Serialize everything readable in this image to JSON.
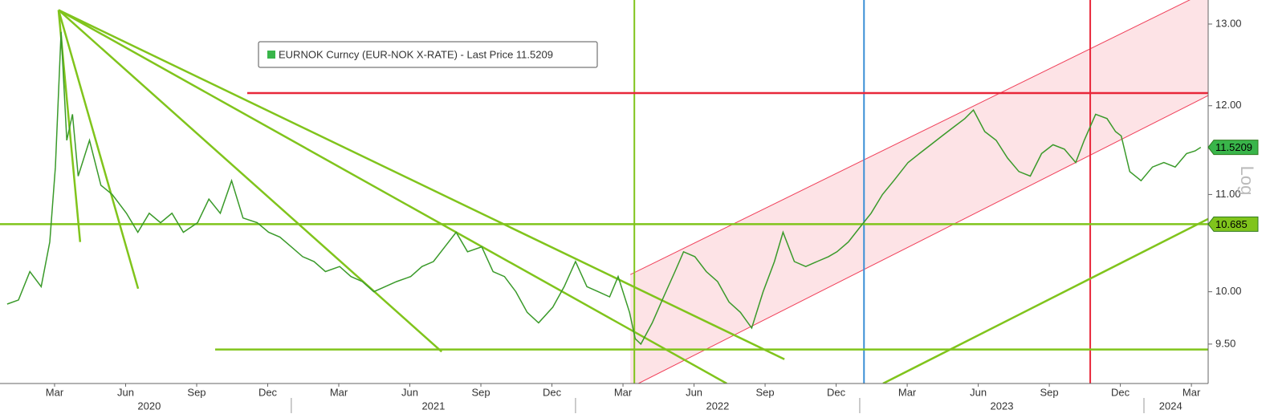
{
  "chart_data": {
    "type": "line",
    "log_scale": true,
    "scale_label": "Log",
    "xlim": [
      2019.975,
      2024.226
    ],
    "ylim": [
      9.14,
      13.31
    ],
    "yticks": [
      {
        "value": 9.5,
        "label": "9.50"
      },
      {
        "value": 10,
        "label": "10.00"
      },
      {
        "value": 11,
        "label": "11.00"
      },
      {
        "value": 12,
        "label": "12.00"
      },
      {
        "value": 13,
        "label": "13.00"
      }
    ],
    "xticks": [
      {
        "value": 2020.167,
        "label": "Mar"
      },
      {
        "value": 2020.417,
        "label": "Jun"
      },
      {
        "value": 2020.667,
        "label": "Sep"
      },
      {
        "value": 2020.917,
        "label": "Dec"
      },
      {
        "value": 2021.167,
        "label": "Mar"
      },
      {
        "value": 2021.417,
        "label": "Jun"
      },
      {
        "value": 2021.667,
        "label": "Sep"
      },
      {
        "value": 2021.917,
        "label": "Dec"
      },
      {
        "value": 2022.167,
        "label": "Mar"
      },
      {
        "value": 2022.417,
        "label": "Jun"
      },
      {
        "value": 2022.667,
        "label": "Sep"
      },
      {
        "value": 2022.917,
        "label": "Dec"
      },
      {
        "value": 2023.167,
        "label": "Mar"
      },
      {
        "value": 2023.417,
        "label": "Jun"
      },
      {
        "value": 2023.667,
        "label": "Sep"
      },
      {
        "value": 2023.917,
        "label": "Dec"
      },
      {
        "value": 2024.167,
        "label": "Mar"
      }
    ],
    "year_labels": [
      {
        "value": 2020.5,
        "label": "2020"
      },
      {
        "value": 2021.5,
        "label": "2021"
      },
      {
        "value": 2022.5,
        "label": "2022"
      },
      {
        "value": 2023.5,
        "label": "2023"
      },
      {
        "value": 2024.094,
        "label": "2024"
      }
    ],
    "year_separators": [
      2021,
      2022,
      2023,
      2024
    ],
    "x": [
      2020.0,
      2020.04,
      2020.08,
      2020.12,
      2020.15,
      2020.17,
      2020.19,
      2020.21,
      2020.23,
      2020.25,
      2020.29,
      2020.33,
      2020.37,
      2020.42,
      2020.46,
      2020.5,
      2020.54,
      2020.58,
      2020.62,
      2020.67,
      2020.71,
      2020.75,
      2020.79,
      2020.83,
      2020.88,
      2020.92,
      2020.96,
      2021.0,
      2021.04,
      2021.08,
      2021.12,
      2021.17,
      2021.21,
      2021.25,
      2021.29,
      2021.33,
      2021.37,
      2021.42,
      2021.46,
      2021.5,
      2021.54,
      2021.58,
      2021.62,
      2021.67,
      2021.71,
      2021.75,
      2021.79,
      2021.83,
      2021.87,
      2021.92,
      2021.96,
      2022.0,
      2022.04,
      2022.08,
      2022.12,
      2022.15,
      2022.19,
      2022.21,
      2022.23,
      2022.27,
      2022.31,
      2022.35,
      2022.38,
      2022.42,
      2022.46,
      2022.5,
      2022.54,
      2022.58,
      2022.62,
      2022.66,
      2022.7,
      2022.73,
      2022.77,
      2022.81,
      2022.85,
      2022.89,
      2022.92,
      2022.96,
      2023.0,
      2023.04,
      2023.08,
      2023.12,
      2023.17,
      2023.21,
      2023.25,
      2023.29,
      2023.33,
      2023.37,
      2023.4,
      2023.44,
      2023.48,
      2023.52,
      2023.56,
      2023.6,
      2023.64,
      2023.68,
      2023.72,
      2023.76,
      2023.79,
      2023.83,
      2023.87,
      2023.9,
      2023.92,
      2023.95,
      2023.99,
      2024.03,
      2024.07,
      2024.11,
      2024.15,
      2024.18,
      2024.2
    ],
    "series": [
      {
        "name": "EURNOK Curncy (EUR-NOK X-RATE) - Last Price 11.5209",
        "color": "#3a9a2a",
        "values": [
          9.88,
          9.92,
          10.2,
          10.05,
          10.5,
          11.3,
          12.9,
          11.6,
          11.9,
          11.2,
          11.6,
          11.1,
          11.0,
          10.8,
          10.6,
          10.8,
          10.7,
          10.8,
          10.6,
          10.7,
          10.95,
          10.8,
          11.15,
          10.75,
          10.7,
          10.6,
          10.55,
          10.45,
          10.35,
          10.3,
          10.2,
          10.25,
          10.15,
          10.1,
          10.0,
          10.05,
          10.1,
          10.15,
          10.25,
          10.3,
          10.45,
          10.6,
          10.4,
          10.45,
          10.2,
          10.15,
          10.0,
          9.8,
          9.7,
          9.85,
          10.05,
          10.3,
          10.05,
          10.0,
          9.95,
          10.15,
          9.8,
          9.55,
          9.5,
          9.7,
          9.95,
          10.2,
          10.4,
          10.35,
          10.2,
          10.1,
          9.9,
          9.8,
          9.65,
          10.0,
          10.3,
          10.6,
          10.3,
          10.25,
          10.3,
          10.35,
          10.4,
          10.5,
          10.65,
          10.8,
          11.0,
          11.15,
          11.35,
          11.45,
          11.55,
          11.65,
          11.75,
          11.85,
          11.95,
          11.7,
          11.6,
          11.4,
          11.25,
          11.2,
          11.45,
          11.55,
          11.5,
          11.35,
          11.6,
          11.9,
          11.85,
          11.7,
          11.65,
          11.25,
          11.15,
          11.3,
          11.35,
          11.3,
          11.45,
          11.48,
          11.5209
        ]
      }
    ],
    "last_price_tag_color": "#39b54a",
    "hlines": [
      {
        "value": 12.15,
        "color": "#e8273a",
        "x_start": 2020.845
      },
      {
        "value": 10.685,
        "color": "#80c41c",
        "x_start": 2019.975,
        "tag": true
      },
      {
        "value": 9.45,
        "color": "#80c41c",
        "x_start": 2020.732
      }
    ],
    "vlines": [
      {
        "value": 2022.207,
        "color": "#80c41c"
      },
      {
        "value": 2023.015,
        "color": "#3b8fd6"
      },
      {
        "value": 2023.811,
        "color": "#e8273a"
      }
    ],
    "trend_lines": [
      {
        "color": "#80c41c",
        "x": [
          2020.181,
          2020.257
        ],
        "y": [
          13.18,
          10.5
        ]
      },
      {
        "color": "#80c41c",
        "x": [
          2020.181,
          2020.461
        ],
        "y": [
          13.18,
          10.03
        ]
      },
      {
        "color": "#80c41c",
        "x": [
          2020.181,
          2021.529
        ],
        "y": [
          13.18,
          9.43
        ]
      },
      {
        "color": "#80c41c",
        "x": [
          2020.181,
          2022.532
        ],
        "y": [
          13.18,
          9.14
        ]
      },
      {
        "color": "#80c41c",
        "x": [
          2020.181,
          2022.735
        ],
        "y": [
          13.18,
          9.36
        ]
      },
      {
        "color": "#80c41c",
        "x": [
          2023.082,
          2024.226
        ],
        "y": [
          9.14,
          10.74
        ]
      }
    ],
    "channel": {
      "color": "#f0405a",
      "upper": {
        "x": [
          2022.193,
          2024.226
        ],
        "y": [
          10.17,
          13.43
        ]
      },
      "lower": {
        "x": [
          2022.221,
          2024.226
        ],
        "y": [
          9.14,
          12.12
        ]
      }
    }
  }
}
